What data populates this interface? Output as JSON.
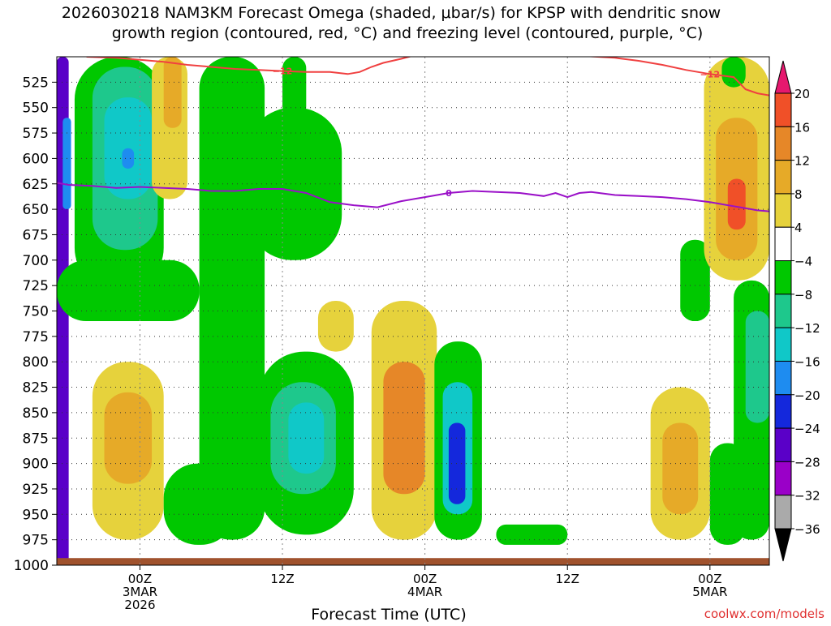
{
  "chart_data": {
    "type": "heatmap",
    "title_line1": "2026030218 NAM3KM Forecast Omega (shaded, μbar/s) for KPSP with dendritic snow",
    "title_line2": "growth region (contoured, red, °C) and freezing level (contoured, purple, °C)",
    "xlabel": "Forecast Time (UTC)",
    "credit": "coolwx.com/models",
    "x_unit": "forecast hours from 2026-03-02 18Z",
    "xlim": [
      -1,
      59
    ],
    "x_ticks": [
      {
        "x": 6,
        "lines": [
          "00Z",
          "3MAR",
          "2026"
        ]
      },
      {
        "x": 18,
        "lines": [
          "12Z"
        ]
      },
      {
        "x": 30,
        "lines": [
          "00Z",
          "4MAR"
        ]
      },
      {
        "x": 42,
        "lines": [
          "12Z"
        ]
      },
      {
        "x": 54,
        "lines": [
          "00Z",
          "5MAR"
        ]
      }
    ],
    "y_unit": "hPa",
    "ylim": [
      500,
      1000
    ],
    "y_ticks": [
      525,
      550,
      575,
      600,
      625,
      650,
      675,
      700,
      725,
      750,
      775,
      800,
      825,
      850,
      875,
      900,
      925,
      950,
      975,
      1000
    ],
    "colorbar": {
      "unit": "μbar/s",
      "levels": [
        -36,
        -32,
        -28,
        -24,
        -20,
        -16,
        -12,
        -8,
        -4,
        4,
        8,
        12,
        16,
        20
      ],
      "labels": [
        "20",
        "16",
        "12",
        "8",
        "4",
        "−4",
        "−8",
        "−12",
        "−16",
        "−20",
        "−24",
        "−28",
        "−32",
        "−36"
      ],
      "colors": [
        "#aaaaaa",
        "#9a00c8",
        "#5a00c8",
        "#1428dc",
        "#1e8cf0",
        "#10c8c8",
        "#1ec88c",
        "#00c800",
        "#ffffff",
        "#e6d23c",
        "#e6aa28",
        "#e68728",
        "#f05028",
        "#e6186e"
      ],
      "under_color": "#000000",
      "over_color": "#e6186e"
    },
    "contours": [
      {
        "name": "freezing-level",
        "label": "0",
        "value_c": 0,
        "color": "#9a10c8",
        "x": [
          -1,
          0,
          2,
          4,
          6,
          8,
          10,
          12,
          14,
          16,
          18,
          20,
          22,
          24,
          26,
          28,
          30,
          32,
          34,
          36,
          38,
          40,
          41,
          42,
          43,
          44,
          46,
          48,
          50,
          52,
          54,
          56,
          58,
          59
        ],
        "pressure": [
          624,
          626,
          627,
          629,
          628,
          629,
          630,
          632,
          632,
          630,
          630,
          634,
          643,
          646,
          648,
          642,
          638,
          634,
          632,
          633,
          634,
          637,
          634,
          638,
          634,
          633,
          636,
          637,
          638,
          640,
          643,
          647,
          651,
          652
        ]
      },
      {
        "name": "dgz-minus-12",
        "label": "−12",
        "value_c": -12,
        "color": "#f04040",
        "segments": [
          {
            "x": [
              1.5,
              4,
              6,
              8,
              10,
              12,
              14,
              16,
              18,
              20,
              22,
              23.5,
              24.5,
              25.5,
              26.5,
              28,
              29
            ],
            "pressure": [
              500,
              501,
              503,
              505,
              508,
              510,
              512,
              513,
              514,
              515,
              515,
              517,
              515,
              510,
              506,
              502,
              499
            ]
          },
          {
            "x": [
              43,
              46,
              48,
              50,
              52,
              54,
              56,
              57,
              58,
              59
            ],
            "pressure": [
              499,
              501,
              504,
              508,
              513,
              517,
              520,
              532,
              536,
              538
            ]
          }
        ]
      }
    ],
    "omega_field": [
      {
        "x": [
          -1,
          0
        ],
        "p": [
          500,
          1000
        ],
        "value": -28
      },
      {
        "x": [
          -0.5,
          0.2
        ],
        "p": [
          560,
          650
        ],
        "value": -20
      },
      {
        "x": [
          0.5,
          8
        ],
        "p": [
          500,
          730
        ],
        "value": -6
      },
      {
        "x": [
          2,
          7.5
        ],
        "p": [
          510,
          690
        ],
        "value": -10
      },
      {
        "x": [
          3,
          7
        ],
        "p": [
          540,
          640
        ],
        "value": -14
      },
      {
        "x": [
          4.5,
          5.5
        ],
        "p": [
          590,
          610
        ],
        "value": -18
      },
      {
        "x": [
          -1,
          11
        ],
        "p": [
          700,
          760
        ],
        "value": -6
      },
      {
        "x": [
          2,
          8
        ],
        "p": [
          800,
          975
        ],
        "value": 6
      },
      {
        "x": [
          3,
          7
        ],
        "p": [
          830,
          920
        ],
        "value": 10
      },
      {
        "x": [
          7,
          10
        ],
        "p": [
          500,
          640
        ],
        "value": 6
      },
      {
        "x": [
          8,
          9.5
        ],
        "p": [
          500,
          570
        ],
        "value": 10
      },
      {
        "x": [
          11,
          16.5
        ],
        "p": [
          500,
          975
        ],
        "value": -6
      },
      {
        "x": [
          15,
          23
        ],
        "p": [
          550,
          700
        ],
        "value": -6
      },
      {
        "x": [
          18,
          20
        ],
        "p": [
          500,
          560
        ],
        "value": -6
      },
      {
        "x": [
          8,
          14
        ],
        "p": [
          900,
          980
        ],
        "value": -6
      },
      {
        "x": [
          16,
          24
        ],
        "p": [
          790,
          970
        ],
        "value": -8
      },
      {
        "x": [
          17,
          22.5
        ],
        "p": [
          820,
          930
        ],
        "value": -12
      },
      {
        "x": [
          18.5,
          21.5
        ],
        "p": [
          840,
          910
        ],
        "value": -16
      },
      {
        "x": [
          21,
          24
        ],
        "p": [
          740,
          790
        ],
        "value": 6
      },
      {
        "x": [
          25.5,
          31
        ],
        "p": [
          740,
          975
        ],
        "value": 6
      },
      {
        "x": [
          26.5,
          30
        ],
        "p": [
          800,
          930
        ],
        "value": 12
      },
      {
        "x": [
          30.8,
          34.8
        ],
        "p": [
          780,
          975
        ],
        "value": -8
      },
      {
        "x": [
          31.5,
          34
        ],
        "p": [
          820,
          950
        ],
        "value": -14
      },
      {
        "x": [
          32,
          33.4
        ],
        "p": [
          860,
          940
        ],
        "value": -22
      },
      {
        "x": [
          36,
          42
        ],
        "p": [
          960,
          980
        ],
        "value": -6
      },
      {
        "x": [
          49,
          54
        ],
        "p": [
          825,
          975
        ],
        "value": 6
      },
      {
        "x": [
          50,
          53
        ],
        "p": [
          860,
          950
        ],
        "value": 10
      },
      {
        "x": [
          51.5,
          54
        ],
        "p": [
          680,
          760
        ],
        "value": -6
      },
      {
        "x": [
          53.5,
          59
        ],
        "p": [
          500,
          720
        ],
        "value": 6
      },
      {
        "x": [
          54.5,
          58
        ],
        "p": [
          560,
          700
        ],
        "value": 10
      },
      {
        "x": [
          55.5,
          57
        ],
        "p": [
          620,
          670
        ],
        "value": 16
      },
      {
        "x": [
          56,
          59
        ],
        "p": [
          720,
          975
        ],
        "value": -6
      },
      {
        "x": [
          57,
          59
        ],
        "p": [
          750,
          860
        ],
        "value": -10
      },
      {
        "x": [
          54,
          57
        ],
        "p": [
          880,
          980
        ],
        "value": -6
      },
      {
        "x": [
          55,
          57
        ],
        "p": [
          500,
          530
        ],
        "value": -6
      }
    ],
    "terrain": {
      "pressure_top": 993,
      "color": "#a0522d"
    }
  }
}
